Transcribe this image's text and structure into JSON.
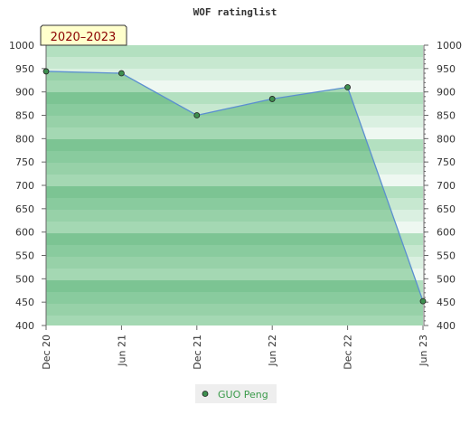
{
  "chart_data": {
    "type": "area",
    "title": "WOF ratinglist",
    "period_badge": "2020–2023",
    "x": [
      "Dec 20",
      "Jun 21",
      "Dec 21",
      "Jun 22",
      "Dec 22",
      "Jun 23"
    ],
    "series": [
      {
        "name": "GUO Peng",
        "values": [
          944,
          940,
          850,
          885,
          910,
          452
        ]
      }
    ],
    "ylim": [
      400,
      1000
    ],
    "yticks": [
      "400",
      "450",
      "500",
      "550",
      "600",
      "650",
      "700",
      "750",
      "800",
      "850",
      "900",
      "950",
      "1000"
    ],
    "grid": true,
    "legend_position": "bottom-center",
    "colors": {
      "line": "#5b8fd0",
      "marker_fill": "#3e8f4f",
      "area_band_dark": "#7cc493",
      "area_band_light": "#a4d8b3",
      "bg_band_dark": "#b3e0c0",
      "bg_band_light": "#eef8f1",
      "badge_bg": "#ffffcc"
    }
  }
}
